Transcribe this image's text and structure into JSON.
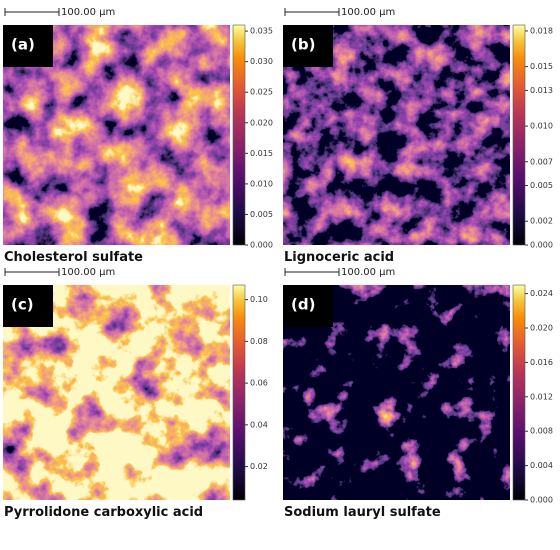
{
  "panels": [
    {
      "label": "(a)",
      "scale_bar": "100.00 µm",
      "caption": "Cholesterol sulfate",
      "colorbar": {
        "lim": [
          0,
          0.036
        ],
        "ticks": [
          {
            "value": 0,
            "label": "0.000"
          },
          {
            "value": 0.005,
            "label": "0.005"
          },
          {
            "value": 0.01,
            "label": "0.010"
          },
          {
            "value": 0.015,
            "label": "0.015"
          },
          {
            "value": 0.02,
            "label": "0.020"
          },
          {
            "value": 0.025,
            "label": "0.025"
          },
          {
            "value": 0.03,
            "label": "0.030"
          },
          {
            "value": 0.035,
            "label": "0.035"
          }
        ]
      }
    },
    {
      "label": "(b)",
      "scale_bar": "100.00 µm",
      "caption": "Lignoceric acid",
      "colorbar": {
        "lim": [
          0,
          0.0185
        ],
        "ticks": [
          {
            "value": 0,
            "label": "0.000"
          },
          {
            "value": 0.002,
            "label": "0.002"
          },
          {
            "value": 0.005,
            "label": "0.005"
          },
          {
            "value": 0.007,
            "label": "0.007"
          },
          {
            "value": 0.01,
            "label": "0.010"
          },
          {
            "value": 0.013,
            "label": "0.013"
          },
          {
            "value": 0.015,
            "label": "0.015"
          },
          {
            "value": 0.018,
            "label": "0.018"
          }
        ]
      }
    },
    {
      "label": "(c)",
      "scale_bar": "100.00 µm",
      "caption": "Pyrrolidone carboxylic acid",
      "colorbar": {
        "lim": [
          0.004,
          0.107
        ],
        "ticks": [
          0.02,
          0.04,
          0.06,
          0.08,
          {
            "value": 0.1,
            "label": "0.10"
          }
        ]
      }
    },
    {
      "label": "(d)",
      "scale_bar": "100.00 µm",
      "caption": "Sodium lauryl sulfate",
      "colorbar": {
        "lim": [
          0,
          0.025
        ],
        "ticks": [
          {
            "value": 0,
            "label": "0.000"
          },
          {
            "value": 0.004,
            "label": "0.004"
          },
          {
            "value": 0.008,
            "label": "0.008"
          },
          {
            "value": 0.012,
            "label": "0.012"
          },
          {
            "value": 0.016,
            "label": "0.016"
          },
          {
            "value": 0.02,
            "label": "0.020"
          },
          {
            "value": 0.024,
            "label": "0.024"
          }
        ]
      }
    }
  ]
}
